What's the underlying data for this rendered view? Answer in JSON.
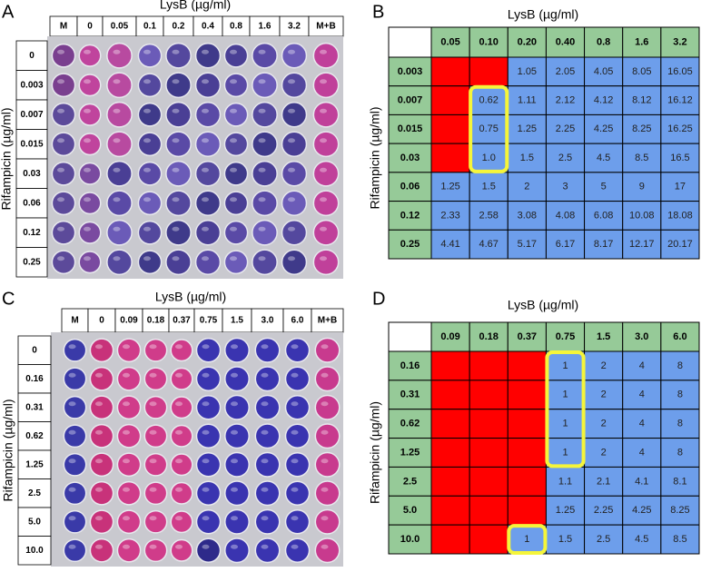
{
  "panels": [
    {
      "letter": "A",
      "x_title": "LysB (µg/ml)",
      "y_title": "Rifampicin (µg/ml)",
      "columns": [
        "M",
        "0",
        "0.05",
        "0.1",
        "0.2",
        "0.4",
        "0.8",
        "1.6",
        "3.2",
        "M+B"
      ],
      "rows": [
        "0",
        "0.003",
        "0.007",
        "0.015",
        "0.03",
        "0.06",
        "0.12",
        "0.25"
      ]
    },
    {
      "letter": "B",
      "x_title": "LysB (µg/ml)",
      "y_title": "Rifampicin (µg/ml)",
      "columns": [
        "0.05",
        "0.10",
        "0.20",
        "0.40",
        "0.8",
        "1.6",
        "3.2"
      ],
      "rows": [
        "0.003",
        "0.007",
        "0.015",
        "0.03",
        "0.06",
        "0.12",
        "0.25"
      ],
      "cells": [
        [
          null,
          null,
          "1.05",
          "2.05",
          "4.05",
          "8.05",
          "16.05"
        ],
        [
          null,
          "0.62",
          "1.11",
          "2.12",
          "4.12",
          "8.12",
          "16.12"
        ],
        [
          null,
          "0.75",
          "1.25",
          "2.25",
          "4.25",
          "8.25",
          "16.25"
        ],
        [
          null,
          "1.0",
          "1.5",
          "2.5",
          "4.5",
          "8.5",
          "16.5"
        ],
        [
          "1.25",
          "1.5",
          "2",
          "3",
          "5",
          "9",
          "17"
        ],
        [
          "2.33",
          "2.58",
          "3.08",
          "4.08",
          "6.08",
          "10.08",
          "18.08"
        ],
        [
          "4.41",
          "4.67",
          "5.17",
          "6.17",
          "8.17",
          "12.17",
          "20.17"
        ]
      ]
    },
    {
      "letter": "C",
      "x_title": "LysB (µg/ml)",
      "y_title": "Rifampicin (µg/ml)",
      "columns": [
        "M",
        "0",
        "0.09",
        "0.18",
        "0.37",
        "0.75",
        "1.5",
        "3.0",
        "6.0",
        "M+B"
      ],
      "rows": [
        "0",
        "0.16",
        "0.31",
        "0.62",
        "1.25",
        "2.5",
        "5.0",
        "10.0"
      ]
    },
    {
      "letter": "D",
      "x_title": "LysB (µg/ml)",
      "y_title": "Rifampicin (µg/ml)",
      "columns": [
        "0.09",
        "0.18",
        "0.37",
        "0.75",
        "1.5",
        "3.0",
        "6.0"
      ],
      "rows": [
        "0.16",
        "0.31",
        "0.62",
        "1.25",
        "2.5",
        "5.0",
        "10.0"
      ],
      "cells": [
        [
          null,
          null,
          null,
          "1",
          "2",
          "4",
          "8"
        ],
        [
          null,
          null,
          null,
          "1",
          "2",
          "4",
          "8"
        ],
        [
          null,
          null,
          null,
          "1",
          "2",
          "4",
          "8"
        ],
        [
          null,
          null,
          null,
          "1",
          "2",
          "4",
          "8"
        ],
        [
          null,
          null,
          null,
          "1.1",
          "2.1",
          "4.1",
          "8.1"
        ],
        [
          null,
          null,
          null,
          "1.25",
          "2.25",
          "4.25",
          "8.25"
        ],
        [
          null,
          null,
          "1",
          "1.5",
          "2.5",
          "4.5",
          "8.5"
        ]
      ]
    }
  ]
}
